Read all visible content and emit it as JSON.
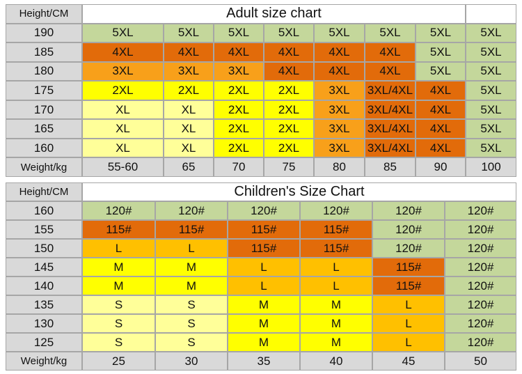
{
  "colors": {
    "5XL": "#c4d79b",
    "4XL": "#e26b0a",
    "3XL/4XL": "#e26b0a",
    "3XL": "#f8a01a",
    "2XL": "#ffff00",
    "XL": "#ffff99",
    "120#": "#c4d79b",
    "115#": "#e26b0a",
    "L": "#ffc000",
    "M": "#ffff00",
    "S": "#ffff99"
  },
  "tables": [
    {
      "corner": "Height/CM",
      "title": "Adult size chart",
      "rows": [
        {
          "height": 190,
          "sizes": [
            "5XL",
            "5XL",
            "5XL",
            "5XL",
            "5XL",
            "5XL",
            "5XL",
            "5XL"
          ]
        },
        {
          "height": 185,
          "sizes": [
            "4XL",
            "4XL",
            "4XL",
            "4XL",
            "4XL",
            "4XL",
            "5XL",
            "5XL"
          ]
        },
        {
          "height": 180,
          "sizes": [
            "3XL",
            "3XL",
            "3XL",
            "4XL",
            "4XL",
            "4XL",
            "5XL",
            "5XL"
          ]
        },
        {
          "height": 175,
          "sizes": [
            "2XL",
            "2XL",
            "2XL",
            "2XL",
            "3XL",
            "3XL/4XL",
            "4XL",
            "5XL"
          ]
        },
        {
          "height": 170,
          "sizes": [
            "XL",
            "XL",
            "2XL",
            "2XL",
            "3XL",
            "3XL/4XL",
            "4XL",
            "5XL"
          ]
        },
        {
          "height": 165,
          "sizes": [
            "XL",
            "XL",
            "2XL",
            "2XL",
            "3XL",
            "3XL/4XL",
            "4XL",
            "5XL"
          ]
        },
        {
          "height": 160,
          "sizes": [
            "XL",
            "XL",
            "2XL",
            "2XL",
            "3XL",
            "3XL/4XL",
            "4XL",
            "5XL"
          ]
        }
      ],
      "footer": "Weight/kg",
      "weights": [
        "55-60",
        "65",
        "70",
        "75",
        "80",
        "85",
        "90",
        "100"
      ]
    },
    {
      "corner": "Height/CM",
      "title": "Children's Size Chart",
      "rows": [
        {
          "height": 160,
          "sizes": [
            "120#",
            "120#",
            "120#",
            "120#",
            "120#",
            "120#"
          ]
        },
        {
          "height": 155,
          "sizes": [
            "115#",
            "115#",
            "115#",
            "115#",
            "120#",
            "120#"
          ]
        },
        {
          "height": 150,
          "sizes": [
            "L",
            "L",
            "115#",
            "115#",
            "120#",
            "120#"
          ]
        },
        {
          "height": 145,
          "sizes": [
            "M",
            "M",
            "L",
            "L",
            "115#",
            "120#"
          ]
        },
        {
          "height": 140,
          "sizes": [
            "M",
            "M",
            "L",
            "L",
            "115#",
            "120#"
          ]
        },
        {
          "height": 135,
          "sizes": [
            "S",
            "S",
            "M",
            "M",
            "L",
            "120#"
          ]
        },
        {
          "height": 130,
          "sizes": [
            "S",
            "S",
            "M",
            "M",
            "L",
            "120#"
          ]
        },
        {
          "height": 125,
          "sizes": [
            "S",
            "S",
            "M",
            "M",
            "L",
            "120#"
          ]
        }
      ],
      "footer": "Weight/kg",
      "weights": [
        "25",
        "30",
        "35",
        "40",
        "45",
        "50"
      ]
    }
  ]
}
